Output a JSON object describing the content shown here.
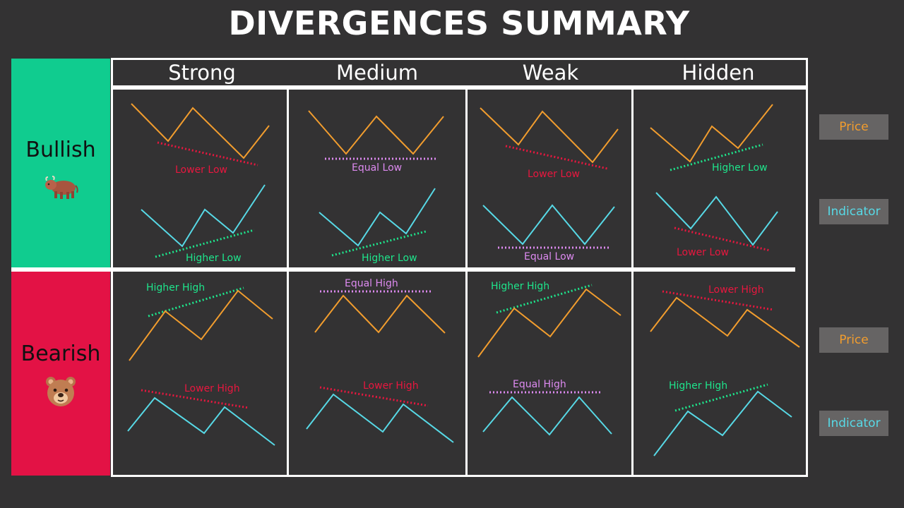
{
  "title": "DIVERGENCES SUMMARY",
  "columns": [
    "Strong",
    "Medium",
    "Weak",
    "Hidden"
  ],
  "rows": {
    "bullish": {
      "label": "Bullish",
      "color": "#10cc8f",
      "icon": "bull-icon"
    },
    "bearish": {
      "label": "Bearish",
      "color": "#e31245",
      "icon": "bear-icon"
    }
  },
  "side_tags": {
    "price_top": "Price",
    "indicator_top": "Indicator",
    "price_bottom": "Price",
    "indicator_bottom": "Indicator"
  },
  "colors": {
    "price": "#f29d2e",
    "indicator": "#57d9e6",
    "lower": "#e8173f",
    "higher": "#1ee58c",
    "equal": "#dd8af0"
  },
  "cells": {
    "bullish_strong": {
      "price_note": "Lower Low",
      "indicator_note": "Higher Low"
    },
    "bullish_medium": {
      "price_note": "Equal Low",
      "indicator_note": "Higher Low"
    },
    "bullish_weak": {
      "price_note": "Lower Low",
      "indicator_note": "Equal Low"
    },
    "bullish_hidden": {
      "price_note": "Higher Low",
      "indicator_note": "Lower Low"
    },
    "bearish_strong": {
      "price_note": "Higher High",
      "indicator_note": "Lower High"
    },
    "bearish_medium": {
      "price_note": "Equal High",
      "indicator_note": "Lower High"
    },
    "bearish_weak": {
      "price_note": "Higher High",
      "indicator_note": "Equal High"
    },
    "bearish_hidden": {
      "price_note": "Lower High",
      "indicator_note": "Higher High"
    }
  }
}
